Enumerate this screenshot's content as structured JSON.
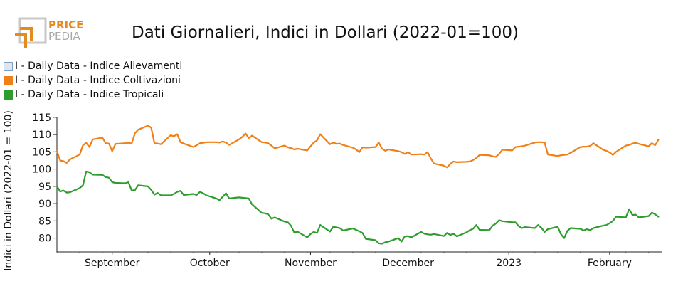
{
  "logo": {
    "line1": "PRICE",
    "line2": "PEDIA"
  },
  "colors": {
    "allevamenti": "#dbe6f1",
    "coltivazioni": "#f07f15",
    "tropicali": "#2e9d2e",
    "logo_orange": "#e58a1f"
  },
  "chart_data": {
    "type": "line",
    "title": "Dati Giornalieri, Indici in Dollari (2022-01=100)",
    "ylabel": "Indici in Dollari (2022-01 = 100)",
    "xlabel": "",
    "xlim": [
      "2022-08-15",
      "2023-02-17"
    ],
    "ylim": [
      76,
      116
    ],
    "yticks": [
      80,
      85,
      90,
      95,
      100,
      105,
      110,
      115
    ],
    "xticks": [
      {
        "date": "2022-09-01",
        "label": "September"
      },
      {
        "date": "2022-10-01",
        "label": "October"
      },
      {
        "date": "2022-11-01",
        "label": "November"
      },
      {
        "date": "2022-12-01",
        "label": "December"
      },
      {
        "date": "2023-01-01",
        "label": "2023"
      },
      {
        "date": "2023-02-01",
        "label": "February"
      }
    ],
    "grid": false,
    "legend_position": "top-left",
    "series": [
      {
        "name": "I - Daily Data - Indice Allevamenti",
        "color": "#dbe6f1",
        "points": []
      },
      {
        "name": "I - Daily Data - Indice Coltivazioni",
        "color": "#f07f15",
        "points": [
          [
            "2022-08-15",
            105.2
          ],
          [
            "2022-08-16",
            102.5
          ],
          [
            "2022-08-17",
            102.3
          ],
          [
            "2022-08-18",
            101.8
          ],
          [
            "2022-08-19",
            102.8
          ],
          [
            "2022-08-22",
            104.2
          ],
          [
            "2022-08-23",
            106.9
          ],
          [
            "2022-08-24",
            107.6
          ],
          [
            "2022-08-25",
            106.4
          ],
          [
            "2022-08-26",
            108.6
          ],
          [
            "2022-08-29",
            109.1
          ],
          [
            "2022-08-30",
            107.5
          ],
          [
            "2022-08-31",
            107.4
          ],
          [
            "2022-09-01",
            105.2
          ],
          [
            "2022-09-02",
            107.3
          ],
          [
            "2022-09-05",
            107.5
          ],
          [
            "2022-09-06",
            107.6
          ],
          [
            "2022-09-07",
            107.4
          ],
          [
            "2022-09-08",
            110.4
          ],
          [
            "2022-09-09",
            111.4
          ],
          [
            "2022-09-12",
            112.6
          ],
          [
            "2022-09-13",
            112.0
          ],
          [
            "2022-09-14",
            107.5
          ],
          [
            "2022-09-15",
            107.4
          ],
          [
            "2022-09-16",
            107.2
          ],
          [
            "2022-09-19",
            109.8
          ],
          [
            "2022-09-20",
            109.5
          ],
          [
            "2022-09-21",
            110.1
          ],
          [
            "2022-09-22",
            107.8
          ],
          [
            "2022-09-23",
            107.4
          ],
          [
            "2022-09-26",
            106.4
          ],
          [
            "2022-09-27",
            106.9
          ],
          [
            "2022-09-28",
            107.5
          ],
          [
            "2022-09-29",
            107.6
          ],
          [
            "2022-09-30",
            107.8
          ],
          [
            "2022-10-03",
            107.8
          ],
          [
            "2022-10-04",
            107.7
          ],
          [
            "2022-10-05",
            108.0
          ],
          [
            "2022-10-06",
            107.7
          ],
          [
            "2022-10-07",
            107.0
          ],
          [
            "2022-10-10",
            108.6
          ],
          [
            "2022-10-11",
            109.3
          ],
          [
            "2022-10-12",
            110.3
          ],
          [
            "2022-10-13",
            109.0
          ],
          [
            "2022-10-14",
            109.7
          ],
          [
            "2022-10-17",
            107.8
          ],
          [
            "2022-10-18",
            107.7
          ],
          [
            "2022-10-19",
            107.5
          ],
          [
            "2022-10-20",
            106.8
          ],
          [
            "2022-10-21",
            106.0
          ],
          [
            "2022-10-24",
            106.8
          ],
          [
            "2022-10-25",
            106.3
          ],
          [
            "2022-10-26",
            106.1
          ],
          [
            "2022-10-27",
            105.7
          ],
          [
            "2022-10-28",
            105.9
          ],
          [
            "2022-10-31",
            105.4
          ],
          [
            "2022-11-01",
            106.6
          ],
          [
            "2022-11-02",
            107.7
          ],
          [
            "2022-11-03",
            108.3
          ],
          [
            "2022-11-04",
            110.1
          ],
          [
            "2022-11-07",
            107.2
          ],
          [
            "2022-11-08",
            107.7
          ],
          [
            "2022-11-09",
            107.3
          ],
          [
            "2022-11-10",
            107.4
          ],
          [
            "2022-11-11",
            107.0
          ],
          [
            "2022-11-14",
            106.2
          ],
          [
            "2022-11-15",
            105.7
          ],
          [
            "2022-11-16",
            104.9
          ],
          [
            "2022-11-17",
            106.3
          ],
          [
            "2022-11-18",
            106.2
          ],
          [
            "2022-11-21",
            106.4
          ],
          [
            "2022-11-22",
            107.7
          ],
          [
            "2022-11-23",
            105.9
          ],
          [
            "2022-11-24",
            105.3
          ],
          [
            "2022-11-25",
            105.7
          ],
          [
            "2022-11-28",
            105.2
          ],
          [
            "2022-11-29",
            104.9
          ],
          [
            "2022-11-30",
            104.4
          ],
          [
            "2022-12-01",
            104.9
          ],
          [
            "2022-12-02",
            104.2
          ],
          [
            "2022-12-05",
            104.3
          ],
          [
            "2022-12-06",
            104.2
          ],
          [
            "2022-12-07",
            104.9
          ],
          [
            "2022-12-08",
            103.1
          ],
          [
            "2022-12-09",
            101.6
          ],
          [
            "2022-12-12",
            101.0
          ],
          [
            "2022-12-13",
            100.5
          ],
          [
            "2022-12-14",
            101.5
          ],
          [
            "2022-12-15",
            102.2
          ],
          [
            "2022-12-16",
            102.0
          ],
          [
            "2022-12-19",
            102.1
          ],
          [
            "2022-12-20",
            102.2
          ],
          [
            "2022-12-21",
            102.6
          ],
          [
            "2022-12-22",
            103.2
          ],
          [
            "2022-12-23",
            104.1
          ],
          [
            "2022-12-26",
            104.0
          ],
          [
            "2022-12-27",
            103.7
          ],
          [
            "2022-12-28",
            103.5
          ],
          [
            "2022-12-29",
            104.4
          ],
          [
            "2022-12-30",
            105.6
          ],
          [
            "2023-01-02",
            105.4
          ],
          [
            "2023-01-03",
            106.4
          ],
          [
            "2023-01-04",
            106.5
          ],
          [
            "2023-01-05",
            106.6
          ],
          [
            "2023-01-06",
            106.8
          ],
          [
            "2023-01-09",
            107.7
          ],
          [
            "2023-01-10",
            107.8
          ],
          [
            "2023-01-11",
            107.8
          ],
          [
            "2023-01-12",
            107.7
          ],
          [
            "2023-01-13",
            104.2
          ],
          [
            "2023-01-16",
            103.8
          ],
          [
            "2023-01-17",
            104.0
          ],
          [
            "2023-01-18",
            104.1
          ],
          [
            "2023-01-19",
            104.2
          ],
          [
            "2023-01-20",
            104.7
          ],
          [
            "2023-01-23",
            106.4
          ],
          [
            "2023-01-24",
            106.5
          ],
          [
            "2023-01-25",
            106.5
          ],
          [
            "2023-01-26",
            106.7
          ],
          [
            "2023-01-27",
            107.5
          ],
          [
            "2023-01-30",
            105.6
          ],
          [
            "2023-01-31",
            105.3
          ],
          [
            "2023-02-01",
            104.8
          ],
          [
            "2023-02-02",
            104.1
          ],
          [
            "2023-02-03",
            105.0
          ],
          [
            "2023-02-06",
            106.8
          ],
          [
            "2023-02-07",
            107.0
          ],
          [
            "2023-02-08",
            107.4
          ],
          [
            "2023-02-09",
            107.6
          ],
          [
            "2023-02-10",
            107.3
          ],
          [
            "2023-02-13",
            106.6
          ],
          [
            "2023-02-14",
            107.5
          ],
          [
            "2023-02-15",
            106.9
          ],
          [
            "2023-02-16",
            108.5
          ]
        ]
      },
      {
        "name": "I - Daily Data - Indice Tropicali",
        "color": "#2e9d2e",
        "points": [
          [
            "2022-08-15",
            95.0
          ],
          [
            "2022-08-16",
            93.5
          ],
          [
            "2022-08-17",
            93.8
          ],
          [
            "2022-08-18",
            93.2
          ],
          [
            "2022-08-19",
            93.3
          ],
          [
            "2022-08-22",
            94.5
          ],
          [
            "2022-08-23",
            95.3
          ],
          [
            "2022-08-24",
            99.3
          ],
          [
            "2022-08-25",
            99.1
          ],
          [
            "2022-08-26",
            98.4
          ],
          [
            "2022-08-29",
            98.3
          ],
          [
            "2022-08-30",
            97.7
          ],
          [
            "2022-08-31",
            97.5
          ],
          [
            "2022-09-01",
            96.2
          ],
          [
            "2022-09-02",
            96.0
          ],
          [
            "2022-09-05",
            95.9
          ],
          [
            "2022-09-06",
            96.2
          ],
          [
            "2022-09-07",
            93.8
          ],
          [
            "2022-09-08",
            93.9
          ],
          [
            "2022-09-09",
            95.3
          ],
          [
            "2022-09-12",
            95.0
          ],
          [
            "2022-09-13",
            94.0
          ],
          [
            "2022-09-14",
            92.6
          ],
          [
            "2022-09-15",
            93.1
          ],
          [
            "2022-09-16",
            92.4
          ],
          [
            "2022-09-19",
            92.4
          ],
          [
            "2022-09-20",
            92.8
          ],
          [
            "2022-09-21",
            93.4
          ],
          [
            "2022-09-22",
            93.7
          ],
          [
            "2022-09-23",
            92.5
          ],
          [
            "2022-09-26",
            92.8
          ],
          [
            "2022-09-27",
            92.5
          ],
          [
            "2022-09-28",
            93.4
          ],
          [
            "2022-09-29",
            93.0
          ],
          [
            "2022-09-30",
            92.4
          ],
          [
            "2022-10-03",
            91.5
          ],
          [
            "2022-10-04",
            91.0
          ],
          [
            "2022-10-05",
            92.0
          ],
          [
            "2022-10-06",
            93.0
          ],
          [
            "2022-10-07",
            91.5
          ],
          [
            "2022-10-10",
            91.8
          ],
          [
            "2022-10-11",
            91.7
          ],
          [
            "2022-10-12",
            91.6
          ],
          [
            "2022-10-13",
            91.5
          ],
          [
            "2022-10-14",
            89.8
          ],
          [
            "2022-10-17",
            87.3
          ],
          [
            "2022-10-18",
            87.2
          ],
          [
            "2022-10-19",
            86.9
          ],
          [
            "2022-10-20",
            85.6
          ],
          [
            "2022-10-21",
            86.0
          ],
          [
            "2022-10-24",
            84.8
          ],
          [
            "2022-10-25",
            84.6
          ],
          [
            "2022-10-26",
            83.6
          ],
          [
            "2022-10-27",
            81.6
          ],
          [
            "2022-10-28",
            81.9
          ],
          [
            "2022-10-31",
            80.2
          ],
          [
            "2022-11-01",
            81.2
          ],
          [
            "2022-11-02",
            81.8
          ],
          [
            "2022-11-03",
            81.5
          ],
          [
            "2022-11-04",
            83.8
          ],
          [
            "2022-11-07",
            81.9
          ],
          [
            "2022-11-08",
            83.3
          ],
          [
            "2022-11-09",
            83.1
          ],
          [
            "2022-11-10",
            82.9
          ],
          [
            "2022-11-11",
            82.2
          ],
          [
            "2022-11-14",
            82.8
          ],
          [
            "2022-11-15",
            82.4
          ],
          [
            "2022-11-16",
            82.0
          ],
          [
            "2022-11-17",
            81.5
          ],
          [
            "2022-11-18",
            79.8
          ],
          [
            "2022-11-21",
            79.4
          ],
          [
            "2022-11-22",
            78.5
          ],
          [
            "2022-11-23",
            78.4
          ],
          [
            "2022-11-24",
            78.8
          ],
          [
            "2022-11-25",
            79.0
          ],
          [
            "2022-11-28",
            80.0
          ],
          [
            "2022-11-29",
            79.0
          ],
          [
            "2022-11-30",
            80.5
          ],
          [
            "2022-12-01",
            80.6
          ],
          [
            "2022-12-02",
            80.2
          ],
          [
            "2022-12-05",
            81.8
          ],
          [
            "2022-12-06",
            81.3
          ],
          [
            "2022-12-07",
            81.1
          ],
          [
            "2022-12-08",
            81.0
          ],
          [
            "2022-12-09",
            81.2
          ],
          [
            "2022-12-12",
            80.6
          ],
          [
            "2022-12-13",
            81.5
          ],
          [
            "2022-12-14",
            80.9
          ],
          [
            "2022-12-15",
            81.3
          ],
          [
            "2022-12-16",
            80.5
          ],
          [
            "2022-12-19",
            81.7
          ],
          [
            "2022-12-20",
            82.3
          ],
          [
            "2022-12-21",
            82.7
          ],
          [
            "2022-12-22",
            83.8
          ],
          [
            "2022-12-23",
            82.4
          ],
          [
            "2022-12-26",
            82.3
          ],
          [
            "2022-12-27",
            83.6
          ],
          [
            "2022-12-28",
            84.2
          ],
          [
            "2022-12-29",
            85.2
          ],
          [
            "2022-12-30",
            84.9
          ],
          [
            "2023-01-02",
            84.6
          ],
          [
            "2023-01-03",
            84.6
          ],
          [
            "2023-01-04",
            83.5
          ],
          [
            "2023-01-05",
            82.9
          ],
          [
            "2023-01-06",
            83.2
          ],
          [
            "2023-01-09",
            82.9
          ],
          [
            "2023-01-10",
            83.8
          ],
          [
            "2023-01-11",
            83.0
          ],
          [
            "2023-01-12",
            81.8
          ],
          [
            "2023-01-13",
            82.6
          ],
          [
            "2023-01-16",
            83.3
          ],
          [
            "2023-01-17",
            81.2
          ],
          [
            "2023-01-18",
            80.0
          ],
          [
            "2023-01-19",
            82.1
          ],
          [
            "2023-01-20",
            82.9
          ],
          [
            "2023-01-23",
            82.7
          ],
          [
            "2023-01-24",
            82.2
          ],
          [
            "2023-01-25",
            82.6
          ],
          [
            "2023-01-26",
            82.3
          ],
          [
            "2023-01-27",
            82.9
          ],
          [
            "2023-01-30",
            83.6
          ],
          [
            "2023-01-31",
            83.8
          ],
          [
            "2023-02-01",
            84.3
          ],
          [
            "2023-02-02",
            85.0
          ],
          [
            "2023-02-03",
            86.2
          ],
          [
            "2023-02-06",
            86.0
          ],
          [
            "2023-02-07",
            88.4
          ],
          [
            "2023-02-08",
            86.7
          ],
          [
            "2023-02-09",
            86.8
          ],
          [
            "2023-02-10",
            86.0
          ],
          [
            "2023-02-13",
            86.4
          ],
          [
            "2023-02-14",
            87.4
          ],
          [
            "2023-02-15",
            86.9
          ],
          [
            "2023-02-16",
            86.2
          ]
        ]
      }
    ]
  }
}
